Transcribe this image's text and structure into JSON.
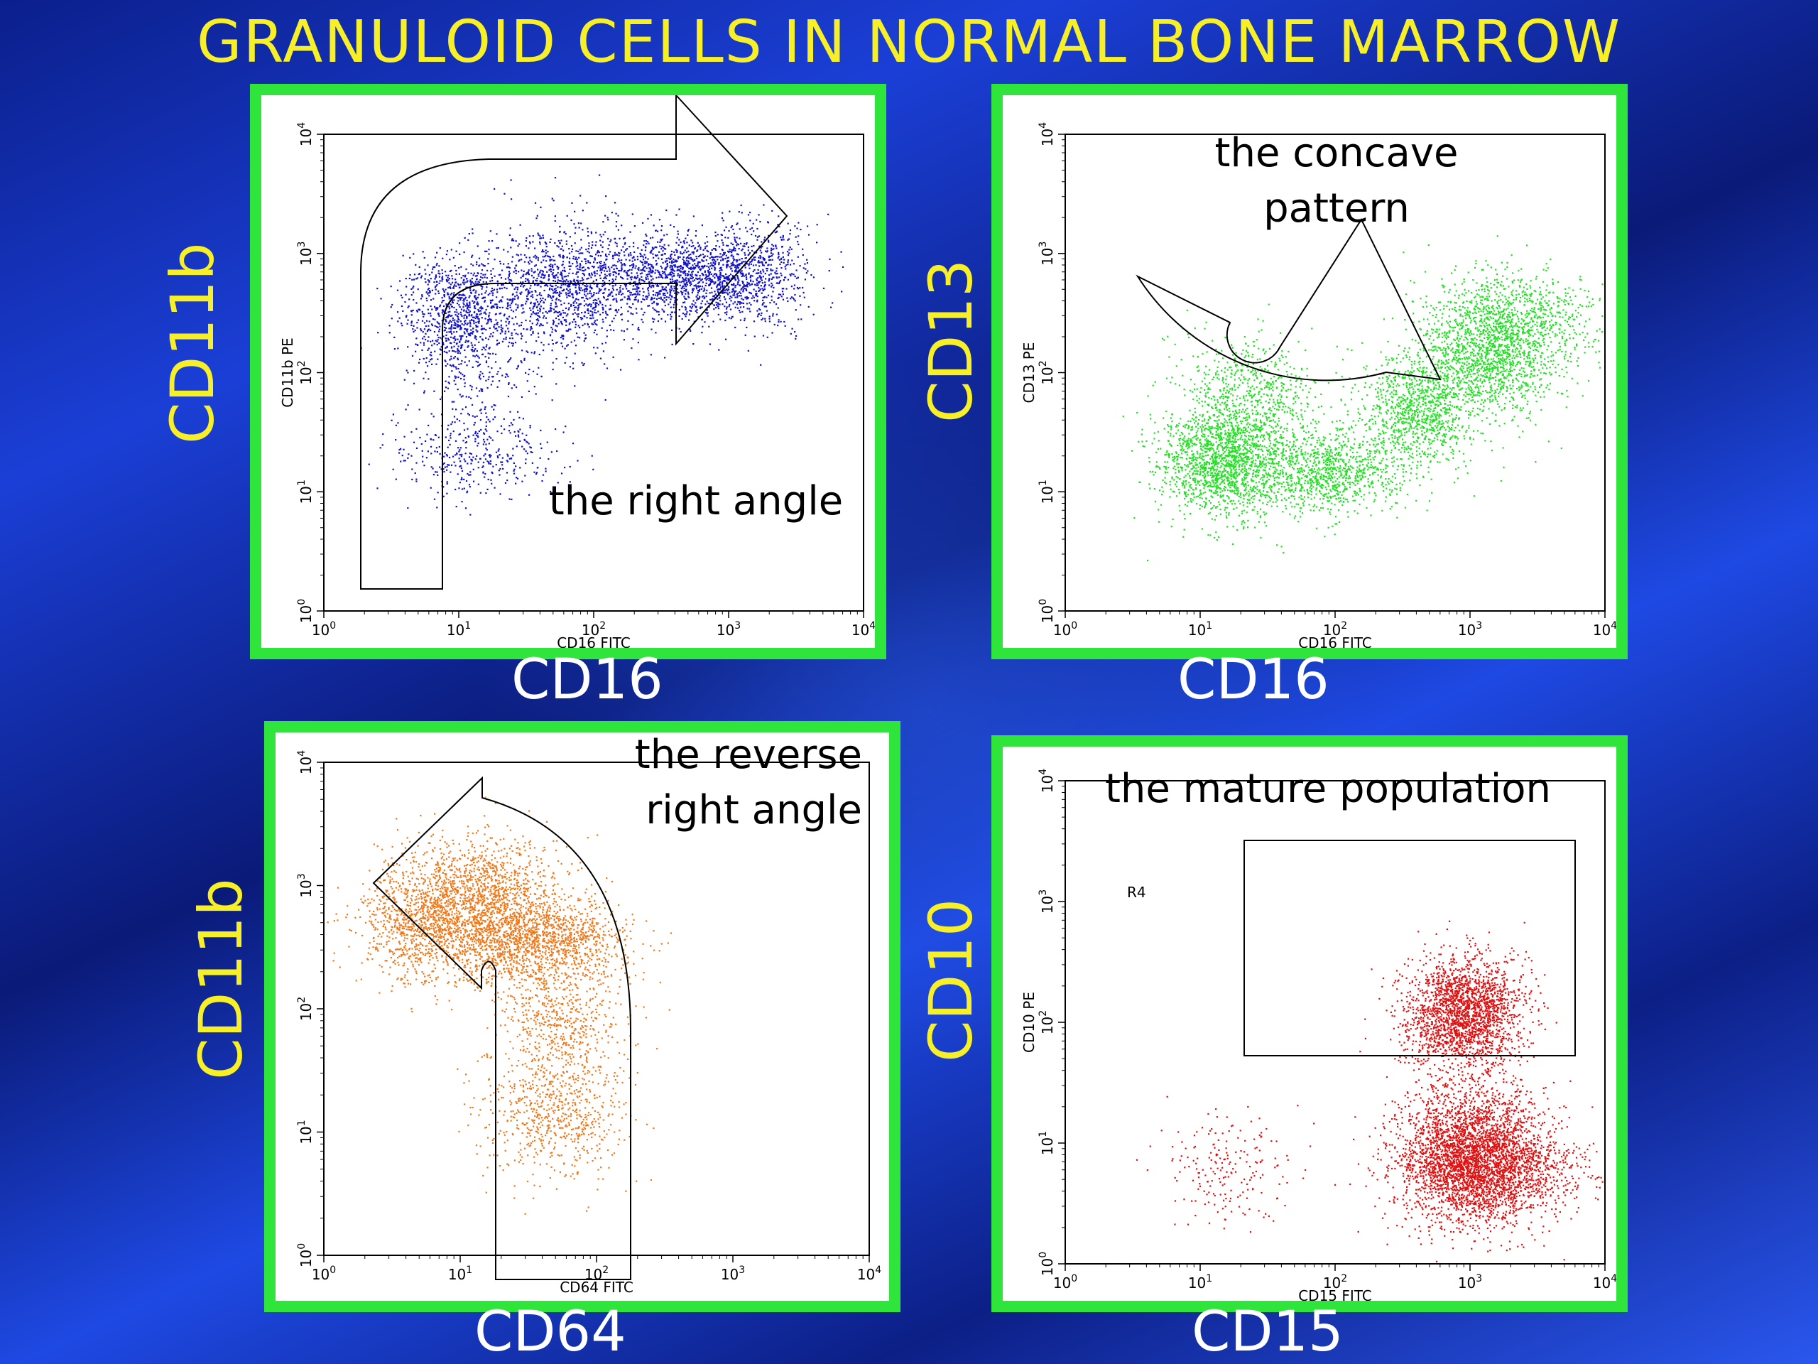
{
  "title": "GRANULOID CELLS IN NORMAL BONE MARROW",
  "chart_data": [
    {
      "type": "scatter",
      "id": "p1",
      "outer_ylabel": "CD11b",
      "outer_xlabel": "CD16",
      "inner_ylabel": "CD11b PE",
      "inner_xlabel": "CD16 FITC",
      "annotation": [
        "the right angle"
      ],
      "x_scale": "log",
      "y_scale": "log",
      "xlim": [
        1,
        10000
      ],
      "ylim": [
        1,
        10000
      ],
      "tick_labels": [
        "10^0",
        "10^1",
        "10^2",
        "10^3",
        "10^4"
      ],
      "point_color": "#1010c8",
      "clusters": [
        {
          "x": 10,
          "y": 350,
          "n": 900
        },
        {
          "x": 60,
          "y": 500,
          "n": 1100
        },
        {
          "x": 400,
          "y": 650,
          "n": 1300
        },
        {
          "x": 1500,
          "y": 700,
          "n": 600
        },
        {
          "x": 13,
          "y": 100,
          "n": 250
        },
        {
          "x": 13,
          "y": 20,
          "n": 350
        }
      ]
    },
    {
      "type": "scatter",
      "id": "p2",
      "outer_ylabel": "CD13",
      "outer_xlabel": "CD16",
      "inner_ylabel": "CD13 PE",
      "inner_xlabel": "CD16 FITC",
      "annotation": [
        "the concave",
        "pattern"
      ],
      "x_scale": "log",
      "y_scale": "log",
      "xlim": [
        1,
        10000
      ],
      "ylim": [
        1,
        10000
      ],
      "tick_labels": [
        "10^0",
        "10^1",
        "10^2",
        "10^3",
        "10^4"
      ],
      "point_color": "#22e022",
      "clusters": [
        {
          "x": 14,
          "y": 18,
          "n": 1500
        },
        {
          "x": 25,
          "y": 60,
          "n": 700
        },
        {
          "x": 80,
          "y": 15,
          "n": 1100
        },
        {
          "x": 400,
          "y": 50,
          "n": 1000
        },
        {
          "x": 1400,
          "y": 150,
          "n": 1500
        },
        {
          "x": 2500,
          "y": 300,
          "n": 500
        }
      ]
    },
    {
      "type": "scatter",
      "id": "p3",
      "outer_ylabel": "CD11b",
      "outer_xlabel": "CD64",
      "inner_ylabel": "",
      "inner_xlabel": "CD64 FITC",
      "annotation": [
        "the reverse",
        "right angle"
      ],
      "x_scale": "log",
      "y_scale": "log",
      "xlim": [
        1,
        10000
      ],
      "ylim": [
        1,
        10000
      ],
      "tick_labels": [
        "10^0",
        "10^1",
        "10^2",
        "10^3",
        "10^4"
      ],
      "point_color": "#f07818",
      "clusters": [
        {
          "x": 5,
          "y": 500,
          "n": 900
        },
        {
          "x": 15,
          "y": 600,
          "n": 1200
        },
        {
          "x": 40,
          "y": 350,
          "n": 1300
        },
        {
          "x": 55,
          "y": 80,
          "n": 500
        },
        {
          "x": 50,
          "y": 15,
          "n": 700
        },
        {
          "x": 12,
          "y": 1200,
          "n": 400
        }
      ]
    },
    {
      "type": "scatter",
      "id": "p4",
      "outer_ylabel": "CD10",
      "outer_xlabel": "CD15",
      "inner_ylabel": "CD10 PE",
      "inner_xlabel": "CD15 FITC",
      "annotation": [
        "the mature population"
      ],
      "region_label": "R4",
      "x_scale": "log",
      "y_scale": "log",
      "xlim": [
        1,
        10000
      ],
      "ylim": [
        1,
        10000
      ],
      "tick_labels": [
        "10^0",
        "10^1",
        "10^2",
        "10^3",
        "10^4"
      ],
      "point_color": "#e01010",
      "clusters": [
        {
          "x": 900,
          "y": 120,
          "n": 2200
        },
        {
          "x": 1000,
          "y": 8,
          "n": 3200
        },
        {
          "x": 1800,
          "y": 6,
          "n": 800
        },
        {
          "x": 15,
          "y": 6,
          "n": 200
        }
      ]
    }
  ]
}
